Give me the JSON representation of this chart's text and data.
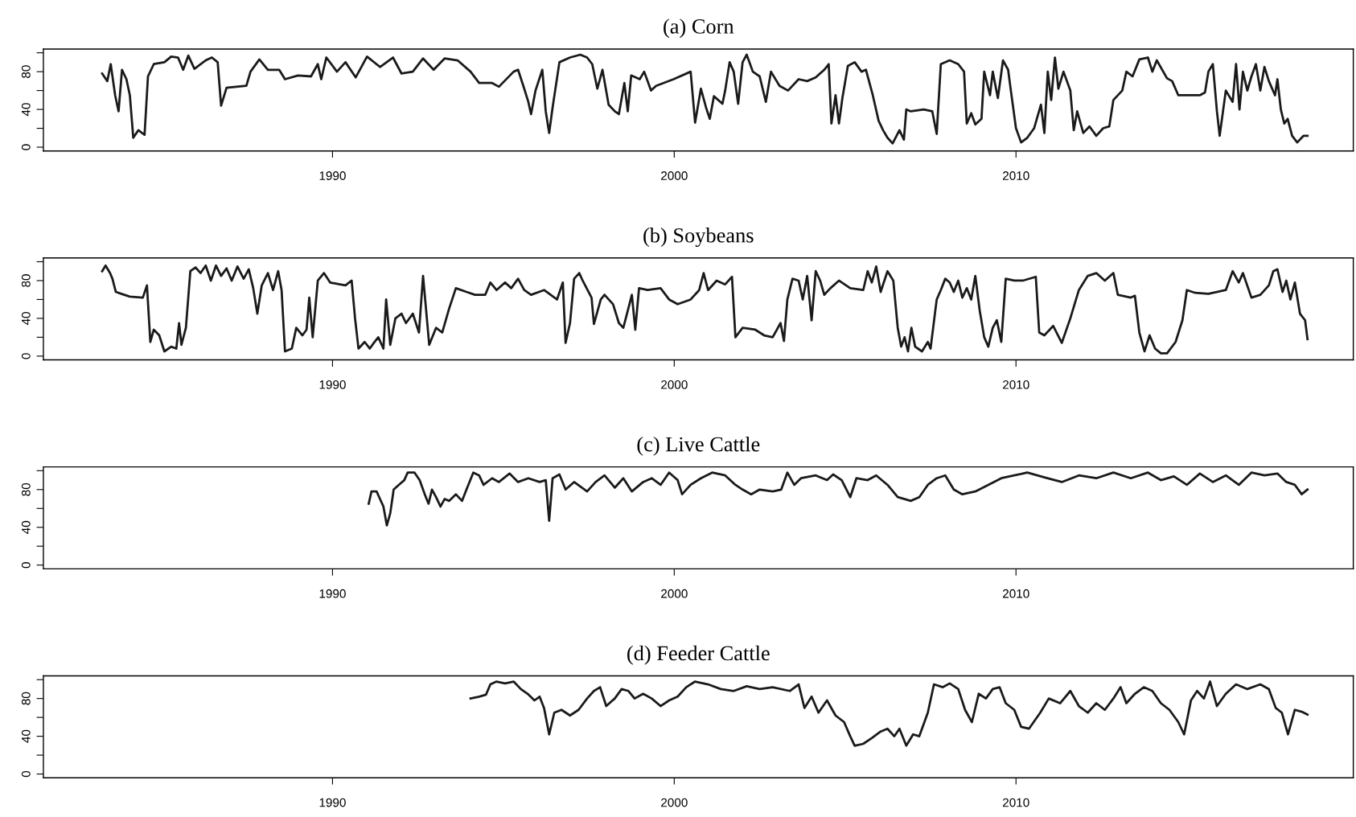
{
  "chart_data": [
    {
      "type": "line",
      "title": "(a) Corn",
      "color": "#1a1a1a",
      "xlim": [
        1981.54,
        2019.87
      ],
      "ylim": [
        -4,
        104
      ],
      "xticks": [
        1990,
        2000,
        2010
      ],
      "yticks": [
        0,
        {
          "value": 20,
          "label": null
        },
        40,
        {
          "value": 60,
          "label": null
        },
        80,
        {
          "value": 100,
          "label": null
        }
      ],
      "x": [
        1983.26,
        1983.41,
        1983.51,
        1983.64,
        1983.74,
        1983.84,
        1983.97,
        1984.07,
        1984.17,
        1984.32,
        1984.5,
        1984.6,
        1984.77,
        1985.08,
        1985.28,
        1985.48,
        1985.63,
        1985.78,
        1985.96,
        1986.29,
        1986.47,
        1986.64,
        1986.74,
        1986.9,
        1987.48,
        1987.6,
        1987.86,
        1988.11,
        1988.44,
        1988.61,
        1988.99,
        1989.37,
        1989.57,
        1989.67,
        1989.82,
        1990.13,
        1990.38,
        1990.68,
        1991.01,
        1991.39,
        1991.77,
        1992.02,
        1992.35,
        1992.65,
        1992.96,
        1993.28,
        1993.66,
        1994.04,
        1994.29,
        1994.67,
        1994.87,
        1995.3,
        1995.43,
        1995.61,
        1995.73,
        1995.81,
        1995.94,
        1996.14,
        1996.24,
        1996.34,
        1996.44,
        1996.64,
        1996.95,
        1997.25,
        1997.45,
        1997.6,
        1997.75,
        1997.9,
        1998.08,
        1998.26,
        1998.38,
        1998.54,
        1998.64,
        1998.74,
        1998.99,
        1999.12,
        1999.32,
        1999.47,
        1999.98,
        2000.48,
        2000.61,
        2000.78,
        2000.93,
        2001.04,
        2001.16,
        2001.41,
        2001.49,
        2001.62,
        2001.74,
        2001.87,
        2002.0,
        2002.12,
        2002.3,
        2002.5,
        2002.68,
        2002.83,
        2003.08,
        2003.33,
        2003.64,
        2003.89,
        2004.14,
        2004.39,
        2004.52,
        2004.6,
        2004.72,
        2004.82,
        2004.92,
        2005.08,
        2005.28,
        2005.48,
        2005.61,
        2005.81,
        2005.98,
        2006.11,
        2006.24,
        2006.39,
        2006.59,
        2006.72,
        2006.79,
        2006.92,
        2007.3,
        2007.55,
        2007.68,
        2007.8,
        2008.06,
        2008.31,
        2008.48,
        2008.56,
        2008.69,
        2008.81,
        2008.99,
        2009.07,
        2009.24,
        2009.32,
        2009.47,
        2009.62,
        2009.77,
        2009.85,
        2010.0,
        2010.15,
        2010.33,
        2010.53,
        2010.73,
        2010.83,
        2010.93,
        2011.03,
        2011.14,
        2011.24,
        2011.39,
        2011.59,
        2011.69,
        2011.79,
        2011.97,
        2012.15,
        2012.35,
        2012.55,
        2012.73,
        2012.85,
        2013.11,
        2013.23,
        2013.41,
        2013.61,
        2013.86,
        2013.99,
        2014.12,
        2014.42,
        2014.57,
        2014.75,
        2015.38,
        2015.53,
        2015.63,
        2015.76,
        2015.88,
        2015.96,
        2016.14,
        2016.34,
        2016.44,
        2016.54,
        2016.64,
        2016.77,
        2016.89,
        2017.02,
        2017.15,
        2017.27,
        2017.4,
        2017.58,
        2017.65,
        2017.75,
        2017.85,
        2017.95,
        2018.08,
        2018.23,
        2018.41,
        2018.53
      ],
      "values": [
        78,
        70,
        88,
        55,
        38,
        82,
        72,
        55,
        10,
        18,
        13,
        75,
        88,
        90,
        96,
        95,
        82,
        97,
        83,
        92,
        95,
        90,
        44,
        63,
        65,
        80,
        93,
        82,
        82,
        72,
        76,
        75,
        88,
        72,
        95,
        80,
        90,
        74,
        96,
        85,
        95,
        78,
        80,
        94,
        82,
        94,
        92,
        80,
        68,
        68,
        64,
        80,
        82,
        62,
        48,
        35,
        60,
        82,
        38,
        15,
        42,
        90,
        95,
        98,
        95,
        88,
        62,
        82,
        45,
        38,
        35,
        68,
        38,
        76,
        72,
        80,
        60,
        65,
        72,
        80,
        26,
        62,
        42,
        30,
        54,
        46,
        60,
        90,
        80,
        46,
        90,
        98,
        80,
        75,
        48,
        80,
        65,
        60,
        72,
        70,
        74,
        82,
        88,
        25,
        55,
        25,
        52,
        86,
        90,
        80,
        82,
        55,
        28,
        18,
        10,
        4,
        18,
        8,
        40,
        38,
        40,
        38,
        14,
        88,
        92,
        88,
        80,
        25,
        36,
        24,
        30,
        80,
        55,
        80,
        52,
        92,
        82,
        60,
        20,
        5,
        10,
        20,
        45,
        15,
        80,
        50,
        95,
        62,
        80,
        60,
        18,
        38,
        15,
        22,
        12,
        20,
        22,
        50,
        60,
        80,
        75,
        93,
        95,
        80,
        92,
        73,
        70,
        55,
        55,
        58,
        80,
        88,
        38,
        12,
        60,
        48,
        88,
        40,
        80,
        60,
        75,
        88,
        60,
        85,
        70,
        55,
        72,
        40,
        25,
        30,
        12,
        5,
        12,
        12
      ]
    },
    {
      "type": "line",
      "title": "(b) Soybeans",
      "color": "#1a1a1a",
      "xlim": [
        1981.54,
        2019.87
      ],
      "ylim": [
        -4,
        104
      ],
      "xticks": [
        1990,
        2000,
        2010
      ],
      "yticks": [
        0,
        {
          "value": 20,
          "label": null
        },
        40,
        {
          "value": 60,
          "label": null
        },
        80,
        {
          "value": 100,
          "label": null
        }
      ],
      "x": [
        1983.26,
        1983.36,
        1983.49,
        1983.56,
        1983.66,
        1983.82,
        1984.07,
        1984.45,
        1984.57,
        1984.67,
        1984.77,
        1984.93,
        1985.08,
        1985.28,
        1985.43,
        1985.51,
        1985.58,
        1985.71,
        1985.84,
        1985.99,
        1986.14,
        1986.29,
        1986.44,
        1986.59,
        1986.74,
        1986.9,
        1987.05,
        1987.22,
        1987.4,
        1987.55,
        1987.68,
        1987.8,
        1987.93,
        1988.11,
        1988.26,
        1988.41,
        1988.51,
        1988.61,
        1988.81,
        1988.94,
        1989.12,
        1989.24,
        1989.32,
        1989.42,
        1989.57,
        1989.75,
        1989.93,
        1990.38,
        1990.56,
        1990.66,
        1990.76,
        1990.94,
        1991.09,
        1991.21,
        1991.34,
        1991.49,
        1991.57,
        1991.69,
        1991.84,
        1992.02,
        1992.15,
        1992.35,
        1992.53,
        1992.65,
        1992.83,
        1993.03,
        1993.21,
        1993.41,
        1993.61,
        1993.92,
        1994.17,
        1994.47,
        1994.62,
        1994.8,
        1995.05,
        1995.23,
        1995.43,
        1995.61,
        1995.81,
        1996.19,
        1996.57,
        1996.74,
        1996.82,
        1996.95,
        1997.07,
        1997.22,
        1997.32,
        1997.58,
        1997.65,
        1997.85,
        1997.96,
        1998.21,
        1998.38,
        1998.51,
        1998.76,
        1998.86,
        1998.97,
        1999.22,
        1999.6,
        1999.85,
        2000.1,
        2000.48,
        2000.73,
        2000.86,
        2000.99,
        2001.24,
        2001.49,
        2001.69,
        2001.79,
        2002.0,
        2002.37,
        2002.63,
        2002.88,
        2003.11,
        2003.21,
        2003.31,
        2003.46,
        2003.64,
        2003.76,
        2003.89,
        2004.02,
        2004.14,
        2004.27,
        2004.39,
        2004.57,
        2004.82,
        2005.15,
        2005.53,
        2005.66,
        2005.78,
        2005.91,
        2006.04,
        2006.24,
        2006.41,
        2006.54,
        2006.64,
        2006.74,
        2006.84,
        2006.94,
        2007.05,
        2007.25,
        2007.42,
        2007.5,
        2007.68,
        2007.8,
        2007.93,
        2008.06,
        2008.18,
        2008.31,
        2008.43,
        2008.56,
        2008.69,
        2008.81,
        2008.94,
        2009.07,
        2009.19,
        2009.32,
        2009.44,
        2009.57,
        2009.7,
        2009.95,
        2010.2,
        2010.58,
        2010.68,
        2010.83,
        2011.09,
        2011.34,
        2011.59,
        2011.84,
        2012.1,
        2012.35,
        2012.6,
        2012.85,
        2012.98,
        2013.36,
        2013.48,
        2013.61,
        2013.76,
        2013.91,
        2014.07,
        2014.24,
        2014.42,
        2014.67,
        2014.87,
        2015.0,
        2015.25,
        2015.63,
        2016.14,
        2016.34,
        2016.52,
        2016.64,
        2016.89,
        2017.15,
        2017.4,
        2017.53,
        2017.65,
        2017.8,
        2017.91,
        2018.03,
        2018.16,
        2018.31,
        2018.46,
        2018.53
      ],
      "values": [
        90,
        96,
        88,
        82,
        68,
        66,
        63,
        62,
        75,
        15,
        28,
        22,
        5,
        10,
        8,
        35,
        12,
        30,
        90,
        94,
        88,
        96,
        80,
        96,
        85,
        93,
        80,
        95,
        82,
        92,
        72,
        45,
        75,
        88,
        70,
        90,
        70,
        5,
        8,
        30,
        22,
        28,
        62,
        20,
        80,
        88,
        78,
        75,
        80,
        40,
        8,
        15,
        8,
        14,
        20,
        8,
        60,
        12,
        40,
        45,
        35,
        45,
        25,
        85,
        12,
        30,
        25,
        50,
        72,
        68,
        65,
        65,
        78,
        70,
        78,
        72,
        82,
        70,
        65,
        70,
        60,
        78,
        14,
        35,
        82,
        88,
        80,
        62,
        34,
        60,
        65,
        55,
        35,
        30,
        65,
        28,
        72,
        70,
        72,
        60,
        55,
        60,
        70,
        88,
        70,
        80,
        76,
        84,
        20,
        30,
        28,
        22,
        20,
        35,
        16,
        60,
        82,
        80,
        60,
        85,
        38,
        90,
        80,
        65,
        72,
        80,
        72,
        70,
        90,
        78,
        95,
        68,
        90,
        80,
        30,
        10,
        20,
        5,
        30,
        10,
        5,
        15,
        8,
        60,
        70,
        82,
        78,
        68,
        80,
        62,
        72,
        60,
        85,
        48,
        20,
        10,
        30,
        38,
        15,
        82,
        80,
        80,
        84,
        25,
        22,
        32,
        14,
        40,
        70,
        85,
        88,
        80,
        88,
        65,
        62,
        64,
        25,
        5,
        22,
        8,
        3,
        3,
        15,
        38,
        70,
        67,
        66,
        70,
        90,
        78,
        88,
        62,
        65,
        75,
        90,
        92,
        68,
        80,
        60,
        78,
        45,
        38,
        18
      ]
    },
    {
      "type": "line",
      "title": "(c) Live Cattle",
      "color": "#1a1a1a",
      "xlim": [
        1981.54,
        2019.87
      ],
      "ylim": [
        -4,
        104
      ],
      "xticks": [
        1990,
        2000,
        2010
      ],
      "yticks": [
        0,
        {
          "value": 20,
          "label": null
        },
        40,
        {
          "value": 60,
          "label": null
        },
        80,
        {
          "value": 100,
          "label": null
        }
      ],
      "x": [
        1991.06,
        1991.14,
        1991.29,
        1991.39,
        1991.49,
        1991.59,
        1991.69,
        1991.79,
        1991.94,
        1992.1,
        1992.2,
        1992.4,
        1992.55,
        1992.7,
        1992.81,
        1992.91,
        1993.03,
        1993.16,
        1993.28,
        1993.41,
        1993.61,
        1993.79,
        1993.92,
        1994.12,
        1994.29,
        1994.42,
        1994.67,
        1994.87,
        1995.18,
        1995.43,
        1995.73,
        1996.06,
        1996.24,
        1996.34,
        1996.44,
        1996.64,
        1996.82,
        1997.07,
        1997.45,
        1997.7,
        1997.96,
        1998.26,
        1998.51,
        1998.76,
        1999.09,
        1999.34,
        1999.6,
        1999.85,
        2000.1,
        2000.23,
        2000.48,
        2000.78,
        2001.11,
        2001.49,
        2001.79,
        2002.0,
        2002.25,
        2002.5,
        2002.88,
        2003.13,
        2003.31,
        2003.51,
        2003.71,
        2004.14,
        2004.47,
        2004.65,
        2004.9,
        2005.15,
        2005.33,
        2005.66,
        2005.91,
        2006.24,
        2006.54,
        2006.92,
        2007.17,
        2007.42,
        2007.68,
        2007.93,
        2008.18,
        2008.43,
        2008.81,
        2009.19,
        2009.57,
        2009.95,
        2010.33,
        2010.83,
        2011.34,
        2011.84,
        2012.35,
        2012.85,
        2013.36,
        2013.86,
        2014.24,
        2014.62,
        2015.0,
        2015.38,
        2015.76,
        2016.14,
        2016.52,
        2016.89,
        2017.27,
        2017.65,
        2017.91,
        2018.16,
        2018.36,
        2018.53
      ],
      "values": [
        65,
        78,
        78,
        70,
        62,
        42,
        55,
        80,
        85,
        90,
        98,
        98,
        90,
        75,
        65,
        80,
        72,
        62,
        70,
        68,
        75,
        68,
        80,
        98,
        95,
        85,
        92,
        88,
        97,
        88,
        92,
        88,
        90,
        47,
        92,
        96,
        80,
        88,
        78,
        88,
        95,
        82,
        92,
        78,
        88,
        92,
        85,
        98,
        90,
        75,
        85,
        92,
        98,
        95,
        85,
        80,
        75,
        80,
        78,
        80,
        98,
        85,
        92,
        95,
        90,
        96,
        90,
        72,
        92,
        90,
        95,
        85,
        72,
        68,
        72,
        85,
        92,
        95,
        80,
        75,
        78,
        85,
        92,
        95,
        98,
        93,
        88,
        95,
        92,
        98,
        92,
        98,
        90,
        94,
        85,
        97,
        88,
        95,
        85,
        98,
        95,
        97,
        88,
        85,
        75,
        80
      ]
    },
    {
      "type": "line",
      "title": "(d) Feeder Cattle",
      "color": "#1a1a1a",
      "xlim": [
        1981.54,
        2019.87
      ],
      "ylim": [
        -4,
        104
      ],
      "xticks": [
        1990,
        2000,
        2010
      ],
      "yticks": [
        0,
        {
          "value": 20,
          "label": null
        },
        40,
        {
          "value": 60,
          "label": null
        },
        80,
        {
          "value": 100,
          "label": null
        }
      ],
      "x": [
        1994.04,
        1994.29,
        1994.49,
        1994.62,
        1994.8,
        1995.05,
        1995.3,
        1995.51,
        1995.71,
        1995.91,
        1996.06,
        1996.19,
        1996.34,
        1996.49,
        1996.7,
        1996.95,
        1997.2,
        1997.45,
        1997.65,
        1997.83,
        1998.01,
        1998.26,
        1998.46,
        1998.66,
        1998.84,
        1999.09,
        1999.34,
        1999.6,
        1999.85,
        2000.1,
        2000.35,
        2000.61,
        2000.99,
        2001.36,
        2001.74,
        2002.12,
        2002.5,
        2002.88,
        2003.38,
        2003.64,
        2003.81,
        2004.02,
        2004.22,
        2004.47,
        2004.72,
        2004.97,
        2005.15,
        2005.28,
        2005.53,
        2005.78,
        2006.04,
        2006.24,
        2006.44,
        2006.59,
        2006.79,
        2006.99,
        2007.17,
        2007.42,
        2007.6,
        2007.86,
        2008.06,
        2008.31,
        2008.51,
        2008.71,
        2008.91,
        2009.12,
        2009.32,
        2009.52,
        2009.7,
        2009.95,
        2010.15,
        2010.38,
        2010.71,
        2010.96,
        2011.29,
        2011.59,
        2011.84,
        2012.1,
        2012.35,
        2012.6,
        2012.85,
        2013.06,
        2013.23,
        2013.48,
        2013.74,
        2013.99,
        2014.24,
        2014.49,
        2014.75,
        2014.92,
        2015.12,
        2015.3,
        2015.5,
        2015.68,
        2015.88,
        2016.14,
        2016.44,
        2016.77,
        2017.15,
        2017.4,
        2017.6,
        2017.78,
        2017.96,
        2018.16,
        2018.36,
        2018.53
      ],
      "values": [
        80,
        82,
        84,
        95,
        98,
        96,
        98,
        90,
        85,
        78,
        82,
        70,
        42,
        65,
        68,
        62,
        68,
        80,
        88,
        92,
        72,
        80,
        90,
        88,
        80,
        85,
        80,
        72,
        78,
        82,
        92,
        98,
        95,
        90,
        88,
        93,
        90,
        92,
        88,
        95,
        70,
        82,
        65,
        78,
        62,
        55,
        40,
        30,
        32,
        38,
        45,
        48,
        40,
        48,
        30,
        42,
        40,
        65,
        95,
        92,
        96,
        90,
        68,
        55,
        85,
        80,
        90,
        92,
        75,
        68,
        50,
        48,
        65,
        80,
        75,
        88,
        72,
        65,
        75,
        68,
        80,
        92,
        75,
        85,
        92,
        88,
        75,
        68,
        55,
        42,
        78,
        88,
        80,
        98,
        72,
        85,
        95,
        90,
        95,
        90,
        70,
        65,
        42,
        68,
        66,
        63
      ]
    }
  ]
}
